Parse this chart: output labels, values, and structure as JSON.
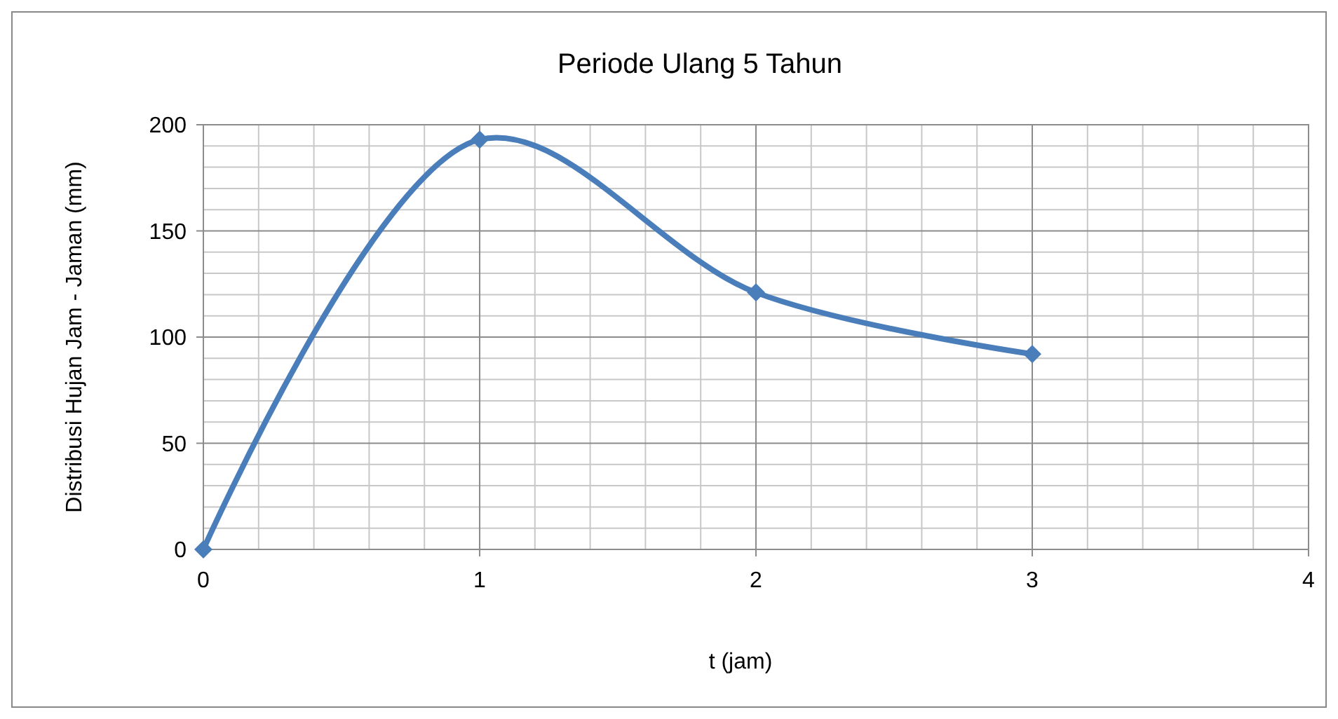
{
  "chart_data": {
    "type": "line",
    "title": "Periode Ulang 5 Tahun",
    "xlabel": "t (jam)",
    "ylabel": "Distribusi Hujan Jam - Jaman (mm)",
    "x": [
      0,
      1,
      2,
      3
    ],
    "series": [
      {
        "color": "#4a7ebb",
        "values": [
          0,
          193,
          121,
          92
        ]
      }
    ],
    "xlim": [
      0,
      4
    ],
    "xticks": [
      0,
      1,
      2,
      3,
      4
    ],
    "ylim": [
      0,
      200
    ],
    "yticks": [
      0,
      50,
      100,
      150,
      200
    ],
    "grid": true,
    "marker": "diamond",
    "line_style": "solid"
  }
}
